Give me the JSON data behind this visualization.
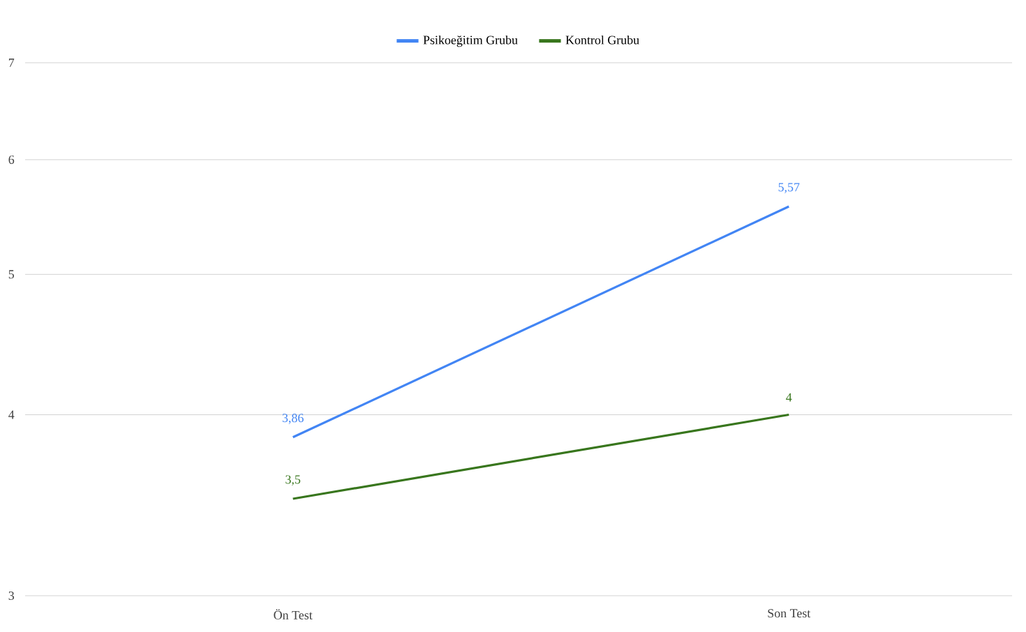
{
  "chart_data": {
    "type": "line",
    "categories": [
      "Ön Test",
      "Son Test"
    ],
    "series": [
      {
        "name": "Psikoeğitim Grubu",
        "color": "#4285f4",
        "values": [
          3.86,
          5.57
        ],
        "value_labels": [
          "3,86",
          "5,57"
        ]
      },
      {
        "name": "Kontrol Grubu",
        "color": "#38761d",
        "values": [
          3.5,
          4
        ],
        "value_labels": [
          "3,5",
          "4"
        ]
      }
    ],
    "log": "y",
    "ylim": [
      3,
      7
    ],
    "yticks": [
      3,
      4,
      5,
      6,
      7
    ],
    "grid": "y",
    "legend": "top",
    "marker": "none",
    "line_style": "solid"
  }
}
